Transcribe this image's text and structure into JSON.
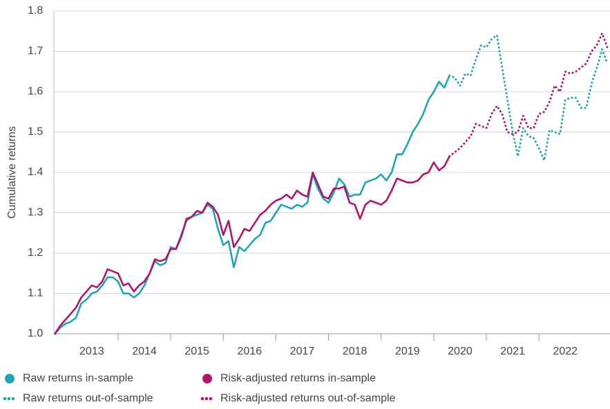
{
  "chart_data": {
    "type": "line",
    "y_label": "Cumulative returns",
    "xlim": [
      2012.78,
      2023.35
    ],
    "ylim": [
      1.0,
      1.8
    ],
    "yticks": [
      {
        "value": 1.0,
        "label": "1.0"
      },
      1.1,
      1.2,
      1.3,
      1.4,
      1.5,
      1.6,
      1.7,
      1.8
    ],
    "xticks": [
      {
        "value": 2013.5,
        "label": "2013"
      },
      {
        "value": 2014.5,
        "label": "2014"
      },
      {
        "value": 2015.5,
        "label": "2015"
      },
      {
        "value": 2016.5,
        "label": "2016"
      },
      {
        "value": 2017.5,
        "label": "2017"
      },
      {
        "value": 2018.5,
        "label": "2018"
      },
      {
        "value": 2019.5,
        "label": "2019"
      },
      {
        "value": 2020.5,
        "label": "2020"
      },
      {
        "value": 2021.5,
        "label": "2021"
      },
      {
        "value": 2022.5,
        "label": "2022"
      }
    ],
    "grid": true,
    "legend": "bottom",
    "series": [
      {
        "name": "Raw returns in-sample",
        "color": "#1ba6b5",
        "style": "solid",
        "x": [
          2012.8,
          2012.9,
          2013.0,
          2013.1,
          2013.2,
          2013.3,
          2013.4,
          2013.5,
          2013.6,
          2013.7,
          2013.8,
          2013.9,
          2014.0,
          2014.1,
          2014.2,
          2014.3,
          2014.4,
          2014.5,
          2014.6,
          2014.7,
          2014.8,
          2014.9,
          2015.0,
          2015.1,
          2015.2,
          2015.3,
          2015.4,
          2015.5,
          2015.6,
          2015.7,
          2015.8,
          2015.9,
          2016.0,
          2016.1,
          2016.2,
          2016.3,
          2016.4,
          2016.5,
          2016.6,
          2016.7,
          2016.8,
          2016.9,
          2017.0,
          2017.1,
          2017.2,
          2017.3,
          2017.4,
          2017.5,
          2017.6,
          2017.7,
          2017.8,
          2017.9,
          2018.0,
          2018.1,
          2018.2,
          2018.3,
          2018.4,
          2018.5,
          2018.6,
          2018.7,
          2018.8,
          2018.9,
          2019.0,
          2019.1,
          2019.2,
          2019.3,
          2019.4,
          2019.5,
          2019.6,
          2019.7,
          2019.8,
          2019.9,
          2020.0,
          2020.1,
          2020.2,
          2020.3
        ],
        "values": [
          1.0,
          1.015,
          1.025,
          1.03,
          1.04,
          1.075,
          1.085,
          1.1,
          1.105,
          1.12,
          1.14,
          1.14,
          1.13,
          1.1,
          1.1,
          1.09,
          1.1,
          1.12,
          1.15,
          1.18,
          1.17,
          1.175,
          1.215,
          1.21,
          1.245,
          1.28,
          1.29,
          1.295,
          1.3,
          1.32,
          1.31,
          1.26,
          1.22,
          1.23,
          1.165,
          1.215,
          1.205,
          1.22,
          1.235,
          1.245,
          1.275,
          1.28,
          1.3,
          1.32,
          1.315,
          1.31,
          1.32,
          1.315,
          1.325,
          1.395,
          1.36,
          1.335,
          1.325,
          1.35,
          1.385,
          1.37,
          1.34,
          1.345,
          1.345,
          1.375,
          1.38,
          1.385,
          1.395,
          1.38,
          1.4,
          1.445,
          1.445,
          1.47,
          1.5,
          1.52,
          1.545,
          1.58,
          1.6,
          1.625,
          1.61,
          1.64
        ]
      },
      {
        "name": "Raw returns out-of-sample",
        "color": "#1ba6b5",
        "style": "dotted",
        "x": [
          2020.3,
          2020.4,
          2020.5,
          2020.6,
          2020.7,
          2020.8,
          2020.9,
          2021.0,
          2021.1,
          2021.2,
          2021.3,
          2021.4,
          2021.5,
          2021.6,
          2021.7,
          2021.8,
          2021.9,
          2022.0,
          2022.1,
          2022.2,
          2022.3,
          2022.4,
          2022.5,
          2022.6,
          2022.7,
          2022.8,
          2022.9,
          2023.0,
          2023.1,
          2023.2,
          2023.3
        ],
        "values": [
          1.64,
          1.635,
          1.615,
          1.645,
          1.64,
          1.68,
          1.715,
          1.71,
          1.73,
          1.74,
          1.66,
          1.58,
          1.5,
          1.44,
          1.51,
          1.49,
          1.485,
          1.46,
          1.43,
          1.505,
          1.5,
          1.495,
          1.58,
          1.585,
          1.585,
          1.56,
          1.56,
          1.62,
          1.66,
          1.705,
          1.67
        ]
      },
      {
        "name": "Risk-adjusted returns in-sample",
        "color": "#b3136d",
        "style": "solid",
        "x": [
          2012.8,
          2012.9,
          2013.0,
          2013.1,
          2013.2,
          2013.3,
          2013.4,
          2013.5,
          2013.6,
          2013.7,
          2013.8,
          2013.9,
          2014.0,
          2014.1,
          2014.2,
          2014.3,
          2014.4,
          2014.5,
          2014.6,
          2014.7,
          2014.8,
          2014.9,
          2015.0,
          2015.1,
          2015.2,
          2015.3,
          2015.4,
          2015.5,
          2015.6,
          2015.7,
          2015.8,
          2015.9,
          2016.0,
          2016.1,
          2016.2,
          2016.3,
          2016.4,
          2016.5,
          2016.6,
          2016.7,
          2016.8,
          2016.9,
          2017.0,
          2017.1,
          2017.2,
          2017.3,
          2017.4,
          2017.5,
          2017.6,
          2017.7,
          2017.8,
          2017.9,
          2018.0,
          2018.1,
          2018.2,
          2018.3,
          2018.4,
          2018.5,
          2018.6,
          2018.7,
          2018.8,
          2018.9,
          2019.0,
          2019.1,
          2019.2,
          2019.3,
          2019.4,
          2019.5,
          2019.6,
          2019.7,
          2019.8,
          2019.9,
          2020.0,
          2020.1,
          2020.2,
          2020.3
        ],
        "values": [
          1.0,
          1.02,
          1.035,
          1.05,
          1.065,
          1.09,
          1.105,
          1.12,
          1.115,
          1.13,
          1.16,
          1.155,
          1.15,
          1.12,
          1.125,
          1.105,
          1.12,
          1.13,
          1.15,
          1.185,
          1.18,
          1.185,
          1.21,
          1.21,
          1.24,
          1.285,
          1.29,
          1.305,
          1.3,
          1.325,
          1.315,
          1.295,
          1.245,
          1.28,
          1.215,
          1.235,
          1.26,
          1.255,
          1.275,
          1.295,
          1.305,
          1.32,
          1.33,
          1.335,
          1.345,
          1.335,
          1.355,
          1.345,
          1.34,
          1.4,
          1.37,
          1.34,
          1.335,
          1.36,
          1.36,
          1.365,
          1.325,
          1.32,
          1.285,
          1.32,
          1.33,
          1.325,
          1.32,
          1.33,
          1.355,
          1.385,
          1.38,
          1.375,
          1.375,
          1.38,
          1.395,
          1.4,
          1.425,
          1.405,
          1.415,
          1.44
        ]
      },
      {
        "name": "Risk-adjusted returns out-of-sample",
        "color": "#b3136d",
        "style": "dotted",
        "x": [
          2020.3,
          2020.4,
          2020.5,
          2020.6,
          2020.7,
          2020.8,
          2020.9,
          2021.0,
          2021.1,
          2021.2,
          2021.3,
          2021.4,
          2021.5,
          2021.6,
          2021.7,
          2021.8,
          2021.9,
          2022.0,
          2022.1,
          2022.2,
          2022.3,
          2022.4,
          2022.5,
          2022.6,
          2022.7,
          2022.8,
          2022.9,
          2023.0,
          2023.1,
          2023.2,
          2023.3
        ],
        "values": [
          1.44,
          1.45,
          1.46,
          1.475,
          1.49,
          1.52,
          1.515,
          1.51,
          1.545,
          1.565,
          1.545,
          1.5,
          1.495,
          1.5,
          1.54,
          1.51,
          1.51,
          1.545,
          1.55,
          1.575,
          1.615,
          1.6,
          1.65,
          1.645,
          1.65,
          1.66,
          1.67,
          1.7,
          1.715,
          1.745,
          1.71
        ]
      }
    ]
  }
}
